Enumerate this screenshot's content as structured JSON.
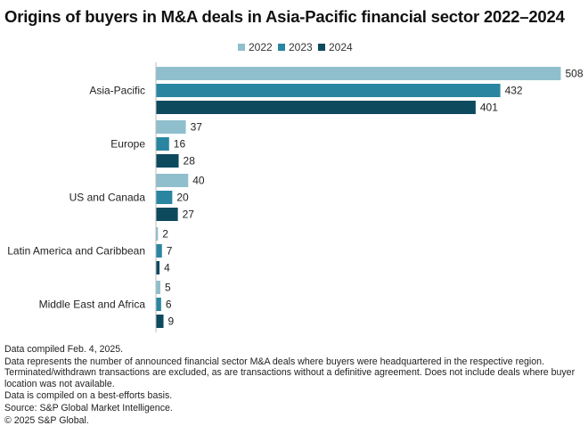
{
  "title": "Origins of buyers in M&A deals in Asia-Pacific financial sector 2022–2024",
  "colors": {
    "2022": "#8fbfcd",
    "2023": "#2a86a0",
    "2024": "#0d4a5e",
    "axis": "#bbbbbb"
  },
  "legend": [
    {
      "label": "2022",
      "color": "#8fbfcd"
    },
    {
      "label": "2023",
      "color": "#2a86a0"
    },
    {
      "label": "2024",
      "color": "#0d4a5e"
    }
  ],
  "chart_data": {
    "type": "bar",
    "orientation": "horizontal",
    "title": "Origins of buyers in M&A deals in Asia-Pacific financial sector 2022–2024",
    "categories": [
      "Asia-Pacific",
      "Europe",
      "US and Canada",
      "Latin America and Caribbean",
      "Middle East and Africa"
    ],
    "series": [
      {
        "name": "2022",
        "values": [
          508,
          37,
          40,
          2,
          5
        ]
      },
      {
        "name": "2023",
        "values": [
          432,
          16,
          20,
          7,
          6
        ]
      },
      {
        "name": "2024",
        "values": [
          401,
          28,
          27,
          4,
          9
        ]
      }
    ],
    "xlim": [
      0,
      508
    ],
    "xlabel": "",
    "ylabel": "",
    "grid": false,
    "legend_position": "top-center",
    "data_labels": true
  },
  "footnotes": [
    "Data compiled Feb. 4, 2025.",
    "Data represents the number of announced financial sector M&A deals where buyers were headquartered in the respective region. Terminated/withdrawn transactions are excluded, as are transactions without a definitive agreement. Does not include deals where buyer location was not available.",
    "Data is compiled on a best-efforts basis.",
    "Source: S&P Global Market Intelligence.",
    "© 2025 S&P Global."
  ]
}
